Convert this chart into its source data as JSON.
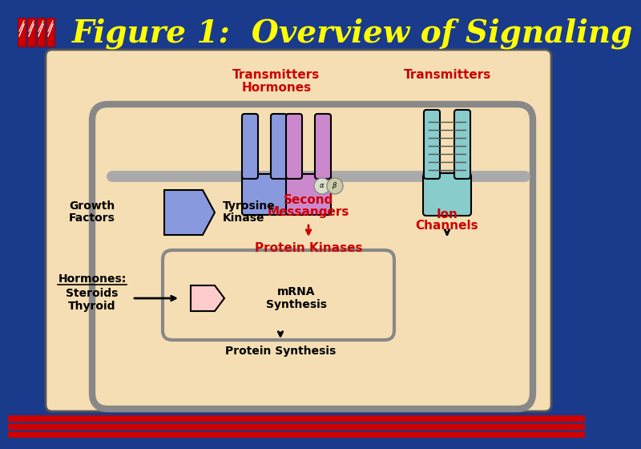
{
  "bg_color": "#1a3a8c",
  "title_text": "Figure 1:  Overview of Signaling",
  "title_color": "#ffff00",
  "title_fontsize": 28,
  "content_bg": "#f5deb3",
  "cell_border_color": "#888888",
  "red_text_color": "#cc0000",
  "black_text_color": "#000000",
  "receptor_blue": "#8899dd",
  "receptor_pink": "#cc88cc",
  "receptor_teal": "#88cccc",
  "small_ellipse_color": "#ddddcc"
}
